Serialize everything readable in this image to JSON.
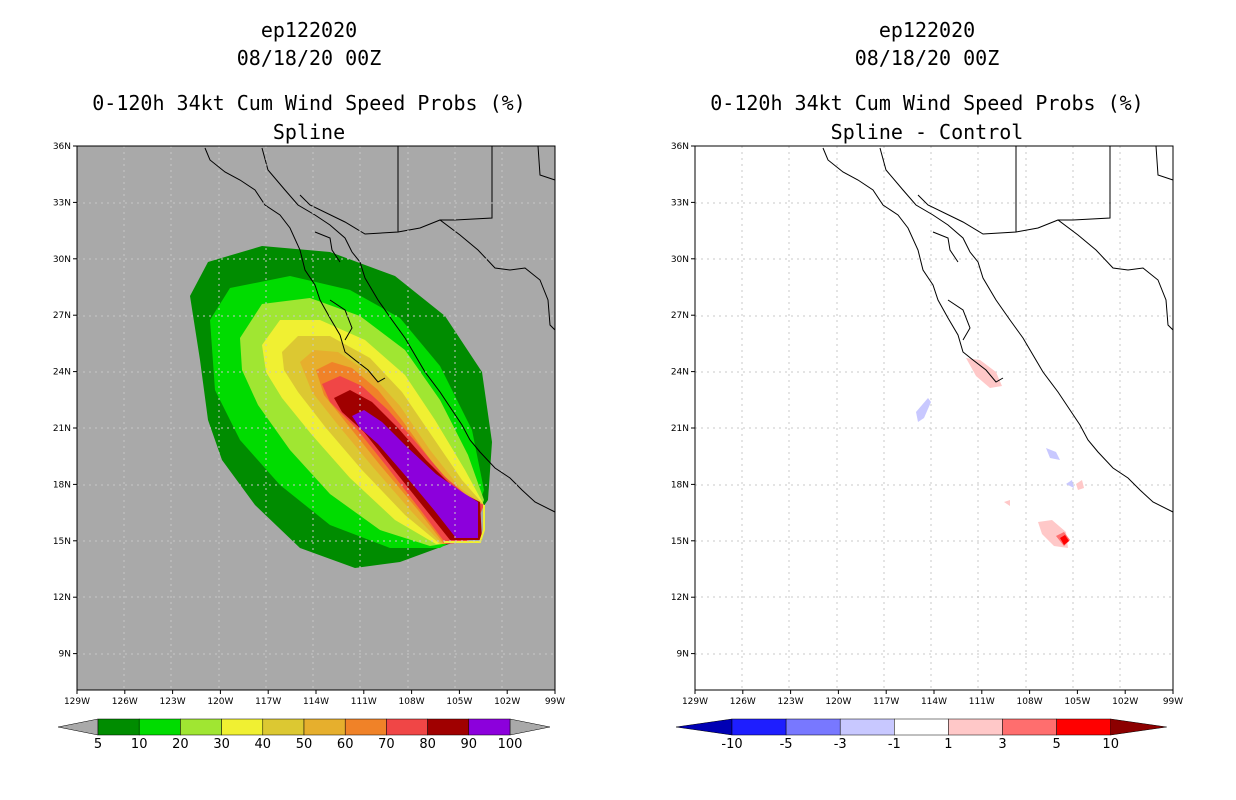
{
  "left_panel": {
    "title_line1": "ep122020",
    "title_line2": "08/18/20 00Z",
    "title_line3": "0-120h 34kt Cum Wind Speed Probs (%)",
    "title_line4": "Spline",
    "background_color": "#a9a9a9",
    "colorbar": {
      "colors": [
        "#008c00",
        "#00dc00",
        "#a0e632",
        "#f0f032",
        "#dcc832",
        "#e6af2d",
        "#f08228",
        "#f04646",
        "#a00000",
        "#8c00dc"
      ],
      "labels": [
        "5",
        "10",
        "20",
        "30",
        "40",
        "50",
        "60",
        "70",
        "80",
        "90",
        "100"
      ]
    }
  },
  "right_panel": {
    "title_line1": "ep122020",
    "title_line2": "08/18/20 00Z",
    "title_line3": "0-120h 34kt Cum Wind Speed Probs (%)",
    "title_line4": "Spline - Control",
    "colorbar": {
      "colors": [
        "#0000b4",
        "#1e1eff",
        "#7878ff",
        "#c8c8ff",
        "#ffffff",
        "#ffc8c8",
        "#ff6e6e",
        "#ff0000",
        "#8c0000"
      ],
      "labels": [
        "-10",
        "-5",
        "-3",
        "-1",
        "1",
        "3",
        "5",
        "10"
      ]
    }
  },
  "axes": {
    "lat_labels": [
      "36N",
      "33N",
      "30N",
      "27N",
      "24N",
      "21N",
      "18N",
      "15N",
      "12N",
      "9N"
    ],
    "lon_labels": [
      "129W",
      "126W",
      "123W",
      "120W",
      "117W",
      "114W",
      "111W",
      "108W",
      "105W",
      "102W",
      "99W"
    ]
  }
}
